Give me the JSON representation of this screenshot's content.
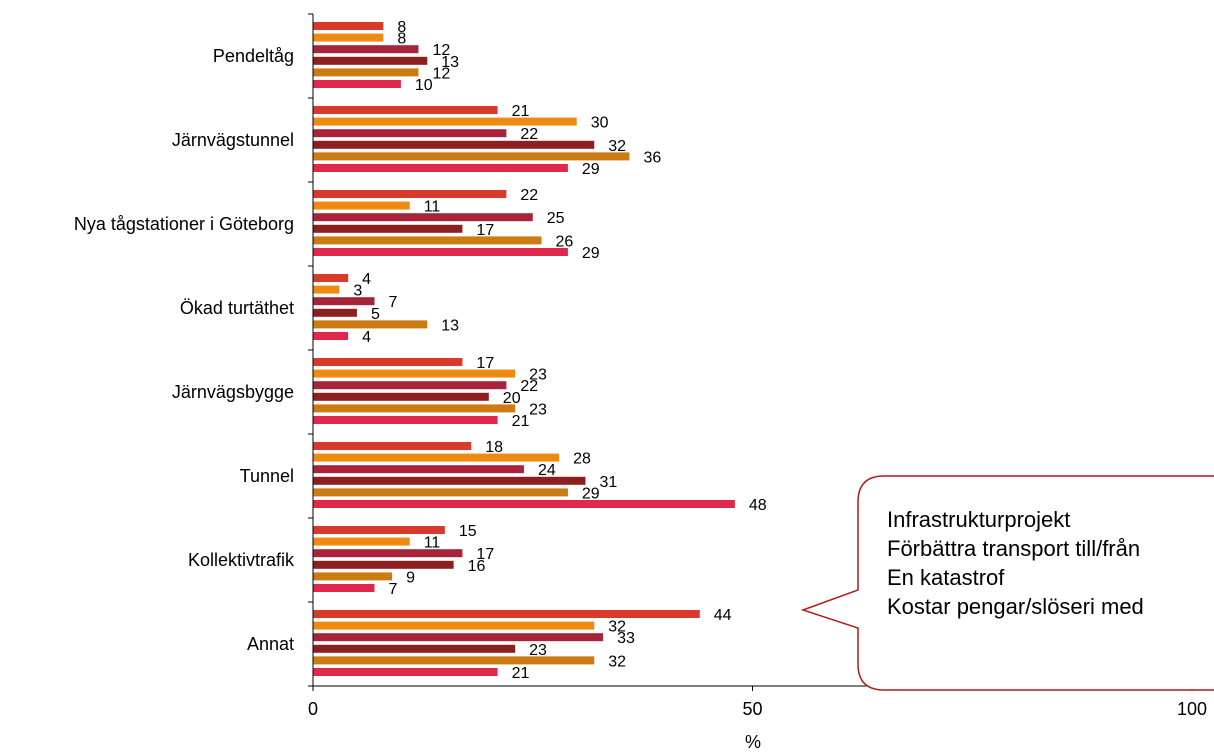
{
  "chart_data": {
    "type": "bar",
    "orientation": "horizontal",
    "categories": [
      "Pendeltåg",
      "Järnvägstunnel",
      "Nya tågstationer i Göteborg",
      "Ökad turtäthet",
      "Järnvägsbygge",
      "Tunnel",
      "Kollektivtrafik",
      "Annat"
    ],
    "series": [
      {
        "values": [
          8,
          21,
          22,
          4,
          17,
          18,
          15,
          44
        ],
        "color": "#d93a2b"
      },
      {
        "values": [
          8,
          30,
          11,
          3,
          23,
          28,
          11,
          32
        ],
        "color": "#ee8a12"
      },
      {
        "values": [
          12,
          22,
          25,
          7,
          22,
          24,
          17,
          33
        ],
        "color": "#a8243a"
      },
      {
        "values": [
          13,
          32,
          17,
          5,
          20,
          31,
          16,
          23
        ],
        "color": "#8c1f1f"
      },
      {
        "values": [
          12,
          36,
          26,
          13,
          23,
          29,
          9,
          32
        ],
        "color": "#cc7a12"
      },
      {
        "values": [
          10,
          29,
          29,
          4,
          21,
          48,
          7,
          21
        ],
        "color": "#e0284c"
      }
    ],
    "xlabel": "%",
    "xlim": [
      0,
      100
    ],
    "xticks": [
      "0",
      "50",
      "100"
    ],
    "data_labels": true,
    "grid": false
  },
  "callout": {
    "items": [
      "Infrastrukturprojekt",
      "Förbättra transport till/från",
      "En katastrof",
      "Kostar pengar/slöseri med"
    ]
  }
}
